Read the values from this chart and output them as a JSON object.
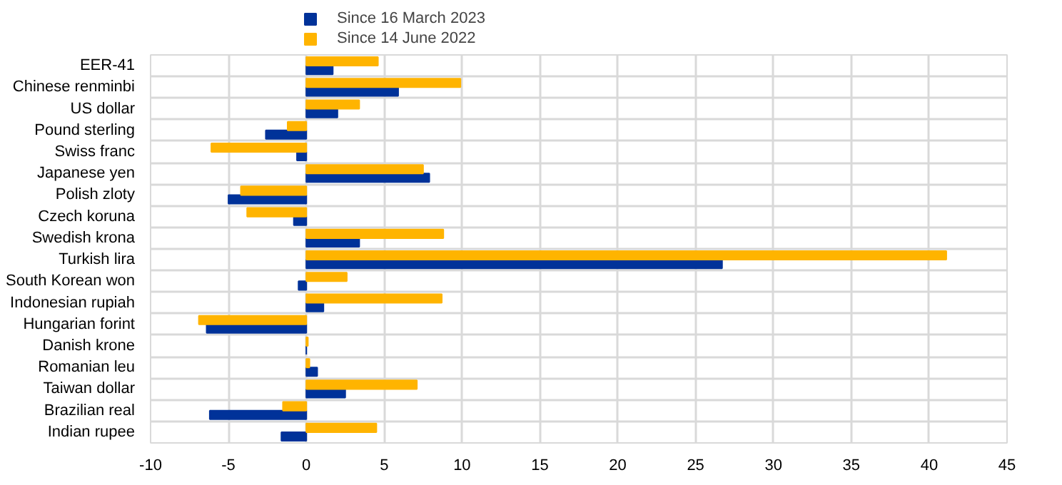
{
  "chart_data": {
    "type": "bar",
    "orientation": "horizontal",
    "categories": [
      "EER-41",
      "Chinese renminbi",
      "US dollar",
      "Pound sterling",
      "Swiss franc",
      "Japanese yen",
      "Polish zloty",
      "Czech koruna",
      "Swedish krona",
      "Turkish lira",
      "South Korean won",
      "Indonesian rupiah",
      "Hungarian forint",
      "Danish krone",
      "Romanian leu",
      "Taiwan dollar",
      "Brazilian real",
      "Indian rupee"
    ],
    "series": [
      {
        "name": "Since 16 March 2023",
        "color": "#003299",
        "values": [
          1.7,
          5.9,
          2.0,
          -2.6,
          -0.6,
          7.9,
          -5.0,
          -0.8,
          3.4,
          26.7,
          -0.5,
          1.1,
          -6.4,
          0.0,
          0.7,
          2.5,
          -6.2,
          -1.6
        ]
      },
      {
        "name": "Since 14 June 2022",
        "color": "#ffb400",
        "values": [
          4.6,
          9.9,
          3.4,
          -1.2,
          -6.1,
          7.5,
          -4.2,
          -3.8,
          8.8,
          41.1,
          2.6,
          8.7,
          -6.9,
          0.1,
          0.2,
          7.1,
          -1.5,
          4.5
        ]
      }
    ],
    "xlim": [
      -10,
      45
    ],
    "xticks": [
      -10,
      -5,
      0,
      5,
      10,
      15,
      20,
      25,
      30,
      35,
      40,
      45
    ],
    "grid": true,
    "legend": "top left"
  }
}
